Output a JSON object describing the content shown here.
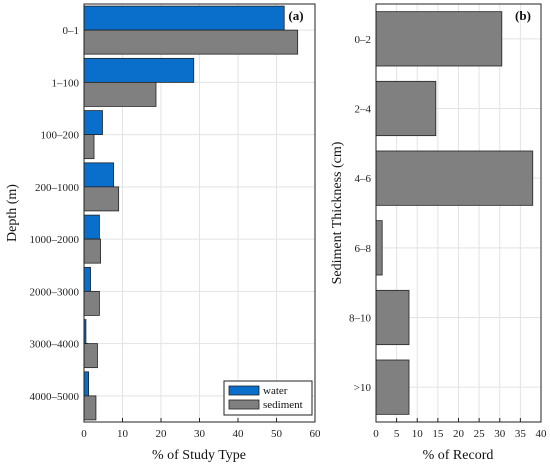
{
  "colors": {
    "water": "#0a6ecb",
    "sediment": "#808080",
    "bar_edge": "#222222"
  },
  "chart_data": [
    {
      "type": "bar",
      "orientation": "horizontal",
      "panel_label": "(a)",
      "categories": [
        "0–1",
        "1–100",
        "100–200",
        "200–1000",
        "1000–2000",
        "2000–3000",
        "3000–4000",
        "4000–5000"
      ],
      "series": [
        {
          "name": "water",
          "values": [
            52,
            28.5,
            4.8,
            7.7,
            4,
            1.7,
            0.5,
            1.2
          ]
        },
        {
          "name": "sediment",
          "values": [
            55.5,
            18.7,
            2.6,
            9,
            4.3,
            4,
            3.5,
            3.1
          ]
        }
      ],
      "xlabel": "% of Study Type",
      "ylabel": "Depth (m)",
      "xlim": [
        0,
        60
      ],
      "xticks": [
        "0",
        "10",
        "20",
        "30",
        "40",
        "50",
        "60"
      ],
      "grid": true,
      "legend_position": "bottom-right"
    },
    {
      "type": "bar",
      "orientation": "horizontal",
      "panel_label": "(b)",
      "categories": [
        "0–2",
        "2–4",
        "4–6",
        "6–8",
        "8–10",
        ">10"
      ],
      "series": [
        {
          "values": [
            30.5,
            14.5,
            38,
            1.5,
            8,
            8
          ]
        }
      ],
      "xlabel": "% of Record",
      "ylabel": "Sediment Thickness (cm)",
      "xlim": [
        0,
        40
      ],
      "xticks": [
        "0",
        "5",
        "10",
        "15",
        "20",
        "25",
        "30",
        "35",
        "40"
      ],
      "grid": true
    }
  ]
}
